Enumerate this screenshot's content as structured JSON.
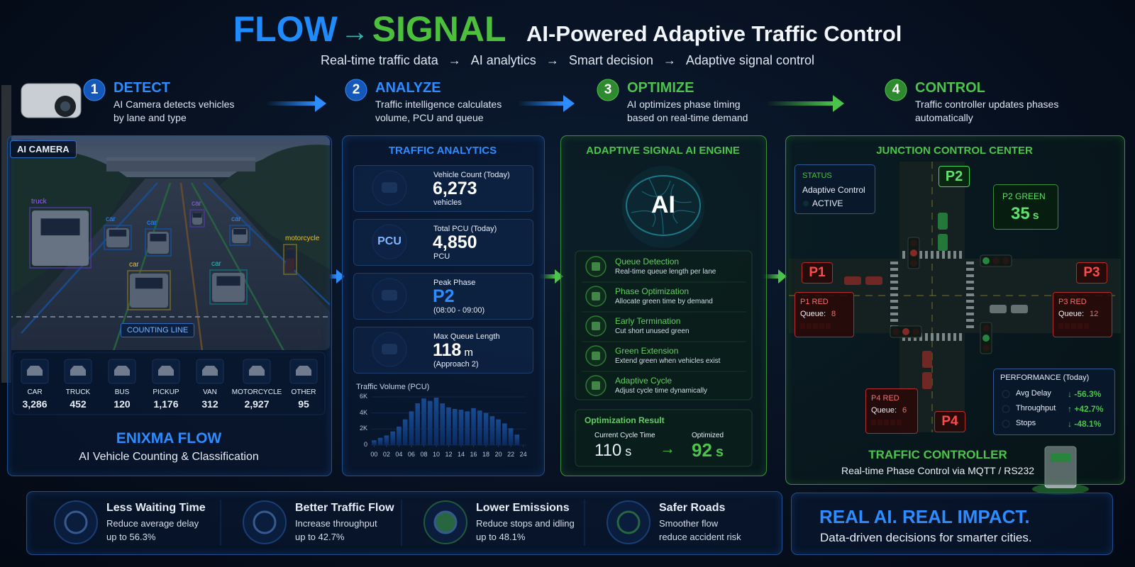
{
  "header": {
    "flow": "FLOW",
    "arrow": "→",
    "signal": "SIGNAL",
    "title": "AI-Powered Adaptive Traffic Control",
    "pipeline": [
      "Real-time traffic data",
      "AI analytics",
      "Smart decision",
      "Adaptive signal control"
    ]
  },
  "steps": [
    {
      "number": 1,
      "title": "DETECT",
      "desc": [
        "AI Camera detects vehicles",
        "by lane and type"
      ]
    },
    {
      "number": 2,
      "title": "ANALYZE",
      "desc": [
        "Traffic intelligence calculates",
        "volume, PCU and queue"
      ]
    },
    {
      "number": 3,
      "title": "OPTIMIZE",
      "desc": [
        "AI optimizes phase timing",
        "based on real-time demand"
      ]
    },
    {
      "number": 4,
      "title": "CONTROL",
      "desc": [
        "Traffic controller updates phases",
        "automatically"
      ]
    }
  ],
  "camera": {
    "badge": "AI CAMERA",
    "detections": [
      "truck",
      "car",
      "car",
      "car",
      "car",
      "car",
      "car",
      "motorcycle"
    ],
    "counting_line": "COUNTING LINE",
    "counts": [
      {
        "label": "CAR",
        "value": "3,286"
      },
      {
        "label": "TRUCK",
        "value": "452"
      },
      {
        "label": "BUS",
        "value": "120"
      },
      {
        "label": "PICKUP",
        "value": "1,176"
      },
      {
        "label": "VAN",
        "value": "312"
      },
      {
        "label": "MOTORCYCLE",
        "value": "2,927"
      },
      {
        "label": "OTHER",
        "value": "95"
      }
    ],
    "brand": "ENIXMA FLOW",
    "tagline": "AI Vehicle Counting & Classification"
  },
  "analytics": {
    "title": "TRAFFIC ANALYTICS",
    "cards": [
      {
        "label": "Vehicle Count (Today)",
        "value": "6,273",
        "sub": "vehicles"
      },
      {
        "icon": "PCU",
        "label": "Total PCU (Today)",
        "value": "4,850",
        "sub": "PCU"
      },
      {
        "label": "Peak Phase",
        "value": "P2",
        "sub": "(08:00 - 09:00)"
      },
      {
        "label": "Max Queue Length",
        "value": "118",
        "unit": "m",
        "sub": "(Approach 2)"
      }
    ]
  },
  "chart_data": {
    "type": "bar",
    "title": "Traffic Volume (PCU)",
    "color": "#1f6fe0",
    "x": [
      0,
      1,
      2,
      3,
      4,
      5,
      6,
      7,
      8,
      9,
      10,
      11,
      12,
      13,
      14,
      15,
      16,
      17,
      18,
      19,
      20,
      21,
      22,
      23
    ],
    "values": [
      600,
      900,
      1200,
      1700,
      2300,
      3200,
      4200,
      5200,
      5800,
      5500,
      5900,
      5200,
      4700,
      4500,
      4400,
      4200,
      4600,
      4300,
      4000,
      3600,
      3200,
      2700,
      2100,
      1300
    ],
    "xlim": [
      -0.5,
      24.5
    ],
    "xticks": [
      {
        "value": 0,
        "label": "00"
      },
      {
        "value": 2,
        "label": "02"
      },
      {
        "value": 4,
        "label": "04"
      },
      {
        "value": 6,
        "label": "06"
      },
      {
        "value": 8,
        "label": "08"
      },
      {
        "value": 10,
        "label": "10"
      },
      {
        "value": 12,
        "label": "12"
      },
      {
        "value": 14,
        "label": "14"
      },
      {
        "value": 16,
        "label": "16"
      },
      {
        "value": 18,
        "label": "18"
      },
      {
        "value": 20,
        "label": "20"
      },
      {
        "value": 22,
        "label": "22"
      },
      {
        "value": 24,
        "label": "24"
      }
    ],
    "ylim": [
      0,
      6000
    ],
    "yticks": [
      0,
      {
        "value": 2000,
        "label": "2K"
      },
      {
        "value": 4000,
        "label": "4K"
      },
      {
        "value": 6000,
        "label": "6K"
      }
    ],
    "grid": true
  },
  "engine": {
    "title": "ADAPTIVE SIGNAL AI ENGINE",
    "ai": "AI",
    "features": [
      {
        "title": "Queue Detection",
        "desc": "Real-time queue length per lane"
      },
      {
        "title": "Phase Optimization",
        "desc": "Allocate green time by demand"
      },
      {
        "title": "Early Termination",
        "desc": "Cut short unused green"
      },
      {
        "title": "Green Extension",
        "desc": "Extend green when vehicles exist"
      },
      {
        "title": "Adaptive Cycle",
        "desc": "Adjust cycle time dynamically"
      }
    ],
    "result": {
      "title": "Optimization Result",
      "current_label": "Current Cycle Time",
      "current": "110",
      "optimized_label": "Optimized",
      "optimized": "92",
      "unit": "s",
      "arrow": "→"
    }
  },
  "junction": {
    "title": "JUNCTION CONTROL CENTER",
    "status": {
      "label": "STATUS",
      "mode": "Adaptive Control",
      "state": "ACTIVE"
    },
    "green": {
      "phase": "P2",
      "label": "P2 GREEN",
      "time": "35",
      "unit": "s"
    },
    "phases": [
      {
        "name": "P1",
        "label": "P1 RED",
        "queue_label": "Queue:",
        "queue": "8"
      },
      {
        "name": "P3",
        "label": "P3 RED",
        "queue_label": "Queue:",
        "queue": "12"
      },
      {
        "name": "P4",
        "label": "P4 RED",
        "queue_label": "Queue:",
        "queue": "6"
      }
    ],
    "performance": {
      "title": "PERFORMANCE (Today)",
      "rows": [
        {
          "label": "Avg Delay",
          "value": "↓ -56.3%"
        },
        {
          "label": "Throughput",
          "value": "↑ +42.7%"
        },
        {
          "label": "Stops",
          "value": "↓ -48.1%"
        }
      ]
    },
    "controller": {
      "title": "TRAFFIC CONTROLLER",
      "desc": "Real-time Phase Control via MQTT / RS232"
    }
  },
  "benefits": [
    {
      "title": "Less Waiting Time",
      "desc": [
        "Reduce average delay",
        "up to 56.3%"
      ]
    },
    {
      "title": "Better Traffic Flow",
      "desc": [
        "Increase throughput",
        "up to 42.7%"
      ]
    },
    {
      "title": "Lower Emissions",
      "desc": [
        "Reduce stops and idling",
        "up to 48.1%"
      ]
    },
    {
      "title": "Safer Roads",
      "desc": [
        "Smoother flow",
        "reduce accident risk"
      ]
    }
  ],
  "footer": {
    "headline": "REAL AI. REAL IMPACT.",
    "tagline": "Data-driven decisions for smarter cities."
  }
}
